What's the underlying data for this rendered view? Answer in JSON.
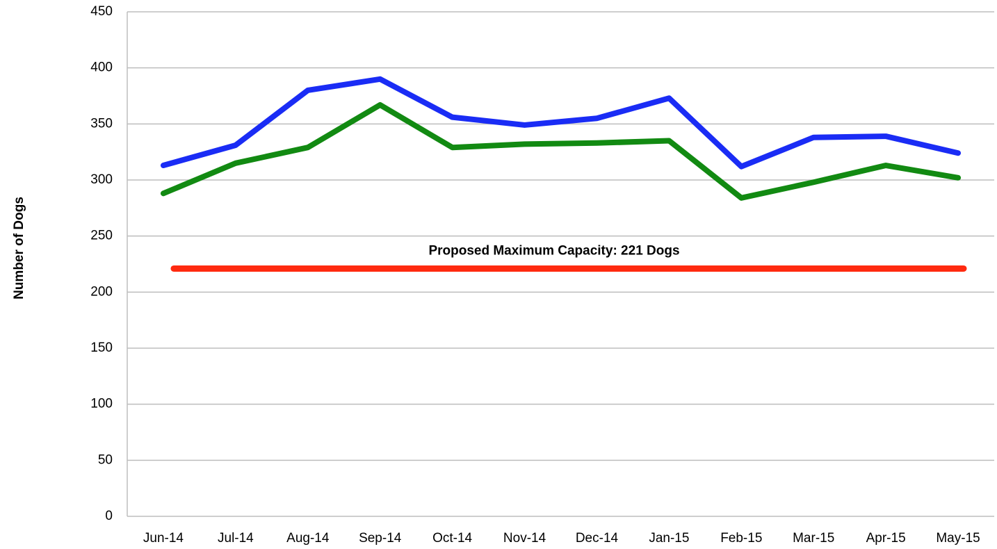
{
  "chart_data": {
    "type": "line",
    "y_label": "Number of Dogs",
    "categories": [
      "Jun-14",
      "Jul-14",
      "Aug-14",
      "Sep-14",
      "Oct-14",
      "Nov-14",
      "Dec-14",
      "Jan-15",
      "Feb-15",
      "Mar-15",
      "Apr-15",
      "May-15"
    ],
    "series": [
      {
        "color": "#1a2cf5",
        "values": [
          313,
          331,
          380,
          390,
          356,
          349,
          355,
          373,
          312,
          338,
          339,
          324
        ]
      },
      {
        "color": "#128a12",
        "values": [
          288,
          315,
          329,
          367,
          329,
          332,
          333,
          335,
          284,
          298,
          313,
          302
        ]
      }
    ],
    "reference_line": {
      "value": 221,
      "color": "#ff2a10",
      "label": "Proposed Maximum Capacity: 221 Dogs"
    },
    "ylim": [
      0,
      450
    ],
    "yticks": [
      0,
      50,
      100,
      150,
      200,
      250,
      300,
      350,
      400,
      450
    ],
    "grid": true
  }
}
